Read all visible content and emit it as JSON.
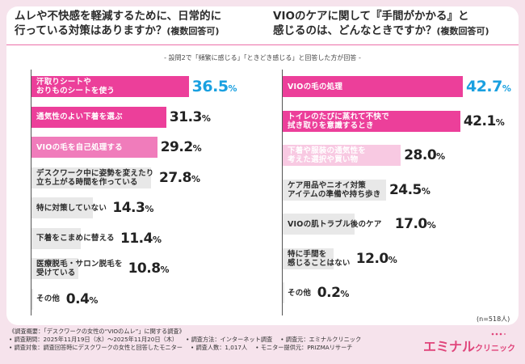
{
  "colors": {
    "bar_dark": "#ec3f9a",
    "bar_mid": "#f07cbb",
    "bar_light": "#f8c9e2",
    "bar_gray": "#e8e8e8",
    "highlight_text": "#1aa0e0",
    "background": "#f6e3ec",
    "brand": "#e0457b"
  },
  "left": {
    "title_line1": "ムレや不快感を軽減するために、日常的に",
    "title_line2": "行っている対策はありますか？",
    "title_suffix": "(複数回答可)"
  },
  "right": {
    "title_line1": "VIOのケアに関して『手間がかかる』と",
    "title_line2": "感じるのは、どんなときですか？",
    "title_suffix": "(複数回答可)"
  },
  "subnote": "- 設問2で「頻繁に感じる」「ときどき感じる」と回答した方が回答 -",
  "n_note": "(n=518人)",
  "footer": {
    "line1": "《調査概要：「デスクワークの女性の“VIOのムレ”」に関する調査》",
    "period": "• 調査期間：2025年11月19日（水）～2025年11月20日（木）",
    "method": "• 調査方法：インターネット調査",
    "org": "• 調査元：エミナルクリニック",
    "target": "• 調査対象：調査回答時にデスクワークの女性と回答したモニター",
    "count": "• 調査人数：1,017人",
    "provider": "• モニター提供元：PRIZMAリサーチ"
  },
  "logo": {
    "main": "エミナル",
    "sub": "クリニック"
  },
  "chart_data": [
    {
      "type": "bar",
      "orientation": "horizontal",
      "title": "ムレや不快感を軽減するために、日常的に行っている対策はありますか？(複数回答可)",
      "unit": "%",
      "categories": [
        [
          "汗取りシートや",
          "おりものシートを使う"
        ],
        [
          "通気性のよい下着を選ぶ"
        ],
        [
          "VIOの毛を自己処理する"
        ],
        [
          "デスクワーク中に姿勢を変えたり",
          "立ち上がる時間を作っている"
        ],
        [
          "特に対策していない"
        ],
        [
          "下着をこまめに替える"
        ],
        [
          "医療脱毛・サロン脱毛を",
          "受けている"
        ],
        [
          "その他"
        ]
      ],
      "values": [
        36.5,
        31.3,
        29.2,
        27.8,
        14.3,
        11.4,
        10.8,
        0.4
      ],
      "display_values": [
        "36.5",
        "31.3",
        "29.2",
        "27.8",
        "14.3",
        "11.4",
        "10.8",
        "0.4"
      ],
      "label_style": [
        "white",
        "white",
        "white",
        "dark",
        "dark",
        "dark",
        "dark",
        "dark"
      ],
      "bar_colors": [
        "#ec3f9a",
        "#ec3f9a",
        "#f07cbb",
        "#e8e8e8",
        "#e8e8e8",
        "#e8e8e8",
        "#e8e8e8",
        "#e8e8e8"
      ],
      "highlight": [
        true,
        false,
        false,
        false,
        false,
        false,
        false,
        false
      ]
    },
    {
      "type": "bar",
      "orientation": "horizontal",
      "title": "VIOのケアに関して『手間がかかる』と感じるのは、どんなときですか？(複数回答可)",
      "unit": "%",
      "categories": [
        [
          "VIOの毛の処理"
        ],
        [
          "トイレのたびに蒸れて不快で",
          "拭き取りを意識するとき"
        ],
        [
          "下着や服装の通気性を",
          "考えた選択や買い物"
        ],
        [
          "ケア用品やニオイ対策",
          "アイテムの準備や持ち歩き"
        ],
        [
          "VIOの肌トラブル後のケア"
        ],
        [
          "特に手間を",
          "感じることはない"
        ],
        [
          "その他"
        ]
      ],
      "values": [
        42.7,
        42.1,
        28.0,
        24.5,
        17.0,
        12.0,
        0.2
      ],
      "display_values": [
        "42.7",
        "42.1",
        "28.0",
        "24.5",
        "17.0",
        "12.0",
        "0.2"
      ],
      "label_style": [
        "white",
        "white",
        "white",
        "dark",
        "dark",
        "dark",
        "dark"
      ],
      "bar_colors": [
        "#ec3f9a",
        "#ec3f9a",
        "#f8c9e2",
        "#e8e8e8",
        "#e8e8e8",
        "#e8e8e8",
        "#e8e8e8"
      ],
      "highlight": [
        true,
        false,
        false,
        false,
        false,
        false,
        false
      ]
    }
  ]
}
